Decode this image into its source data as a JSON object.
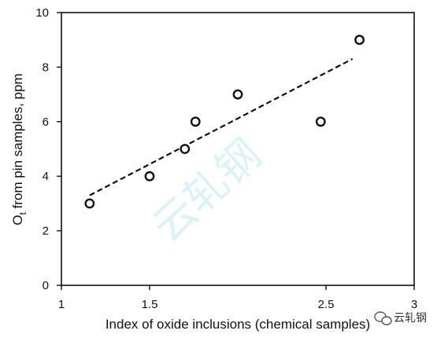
{
  "chart_data": {
    "type": "scatter",
    "title": "",
    "xlabel": "Index of oxide inclusions (chemical samples)",
    "ylabel_main": "O",
    "ylabel_sub": "t",
    "ylabel_rest": " from pin samples, ppm",
    "xlim": [
      1,
      3
    ],
    "ylim": [
      0,
      10
    ],
    "x_ticks": [
      {
        "value": 1,
        "label": "1"
      },
      {
        "value": 1.5,
        "label": "1.5"
      },
      {
        "value": 2.5,
        "label": "2.5"
      },
      {
        "value": 3,
        "label": "3"
      }
    ],
    "y_ticks": [
      {
        "value": 0,
        "label": "0"
      },
      {
        "value": 2,
        "label": "2"
      },
      {
        "value": 4,
        "label": "4"
      },
      {
        "value": 6,
        "label": "6"
      },
      {
        "value": 8,
        "label": "8"
      },
      {
        "value": 10,
        "label": "10"
      }
    ],
    "grid": false,
    "series": [
      {
        "points": [
          {
            "x": 1.16,
            "y": 3.0
          },
          {
            "x": 1.5,
            "y": 4.0
          },
          {
            "x": 1.7,
            "y": 5.0
          },
          {
            "x": 1.76,
            "y": 6.0
          },
          {
            "x": 2.0,
            "y": 7.0
          },
          {
            "x": 2.47,
            "y": 6.0
          },
          {
            "x": 2.69,
            "y": 9.0
          }
        ]
      }
    ],
    "trendline": {
      "style": "dashed",
      "x": [
        1.16,
        2.65
      ],
      "y": [
        3.3,
        8.3
      ]
    },
    "colors": {
      "marker_stroke": "#111111",
      "marker_fill": "#ffffff",
      "trend": "#111111",
      "axis": "#111111"
    }
  },
  "watermark": {
    "overlay_text": "云轧钢",
    "corner_text": "云轧钢",
    "corner_icon": "wechat-icon"
  }
}
